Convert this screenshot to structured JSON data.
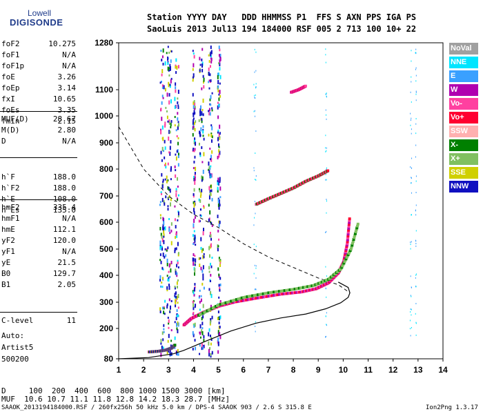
{
  "logo": {
    "top": "Lowell",
    "bottom": "DIGISONDE"
  },
  "header": {
    "line1": "Station YYYY DAY   DDD HHMMSS P1  FFS S AXN PPS IGA PS",
    "line2": "SaoLuis 2013 Jul13 194 184000 RSF 005 2 713 100 10+ 22"
  },
  "params": {
    "group1": [
      {
        "name": "foF2",
        "value": "10.275"
      },
      {
        "name": "foF1",
        "value": "N/A"
      },
      {
        "name": "foF1p",
        "value": "N/A"
      },
      {
        "name": "foE",
        "value": "3.26"
      },
      {
        "name": "foEp",
        "value": "3.14"
      },
      {
        "name": "fxI",
        "value": "10.65"
      },
      {
        "name": "foEs",
        "value": "3.35"
      },
      {
        "name": "fmin",
        "value": "2.15"
      }
    ],
    "group2": [
      {
        "name": "MUF(D)",
        "value": "28.67"
      },
      {
        "name": "M(D)",
        "value": "2.80"
      },
      {
        "name": "D",
        "value": "N/A"
      }
    ],
    "group3": [
      {
        "name": "h`F",
        "value": "188.0"
      },
      {
        "name": "h`F2",
        "value": "188.0"
      },
      {
        "name": "h`E",
        "value": "108.0"
      },
      {
        "name": "h`Es",
        "value": "135.0"
      }
    ],
    "group4": [
      {
        "name": "hmF2",
        "value": "335.4"
      },
      {
        "name": "hmF1",
        "value": "N/A"
      },
      {
        "name": "hmE",
        "value": "112.1"
      },
      {
        "name": "yF2",
        "value": "120.0"
      },
      {
        "name": "yF1",
        "value": "N/A"
      },
      {
        "name": "yE",
        "value": "21.5"
      },
      {
        "name": "B0",
        "value": "129.7"
      },
      {
        "name": "B1",
        "value": "2.05"
      }
    ],
    "group5": [
      {
        "name": "C-level",
        "value": "11"
      }
    ]
  },
  "auto": {
    "line1": "Auto:",
    "line2": "Artist5",
    "line3": "500200"
  },
  "legend": [
    {
      "label": "NoVal",
      "color": "#a0a0a0"
    },
    {
      "label": "NNE",
      "color": "#00e5ff"
    },
    {
      "label": "E",
      "color": "#3aa0ff"
    },
    {
      "label": "W",
      "color": "#b000b0"
    },
    {
      "label": "Vo-",
      "color": "#ff40a0"
    },
    {
      "label": "Vo+",
      "color": "#ff0030"
    },
    {
      "label": "SSW",
      "color": "#ffb0b0"
    },
    {
      "label": "X-",
      "color": "#008000"
    },
    {
      "label": "X+",
      "color": "#80c060"
    },
    {
      "label": "SSE",
      "color": "#d0d000"
    },
    {
      "label": "NNW",
      "color": "#1010c0"
    }
  ],
  "bottom": {
    "d_row": "D     100  200  400  600  800 1000 1500 3000 [km]",
    "muf_row": "MUF  10.6 10.7 11.1 11.8 12.8 14.2 18.3 28.7 [MHz]"
  },
  "footer": {
    "left": "SAAOK_2013194184000.RSF / 260fx256h 50 kHz 5.0 km / DPS-4 SAAOK 903 / 2.6 S 315.8 E",
    "right": "Ion2Png 1.3.17"
  },
  "chart_data": {
    "type": "scatter",
    "x_ticks": [
      "1",
      "2",
      "3",
      "4",
      "5",
      "6",
      "7",
      "8",
      "9",
      "10",
      "11",
      "12",
      "13",
      "14"
    ],
    "y_ticks": [
      "80",
      "200",
      "300",
      "400",
      "500",
      "600",
      "700",
      "800",
      "900",
      "1000",
      "1100",
      "1280"
    ],
    "xlim": [
      1,
      14
    ],
    "ylim": [
      80,
      1280
    ],
    "grid": true,
    "legend_position": "right",
    "traces": [
      {
        "name": "O-trace F2",
        "x": [
          3.6,
          3.9,
          4.4,
          5.0,
          5.6,
          6.5,
          7.5,
          8.3,
          8.9,
          9.4,
          9.8,
          10.0,
          10.15,
          10.25
        ],
        "y": [
          213,
          238,
          262,
          285,
          300,
          315,
          330,
          338,
          350,
          372,
          410,
          450,
          520,
          620
        ]
      },
      {
        "name": "X-trace F2",
        "x": [
          4.2,
          5.0,
          6.0,
          7.0,
          8.0,
          8.8,
          9.4,
          9.9,
          10.3,
          10.6
        ],
        "y": [
          250,
          290,
          318,
          335,
          348,
          362,
          385,
          425,
          500,
          600
        ]
      },
      {
        "name": "O-trace E",
        "x": [
          2.2,
          2.6,
          2.9,
          3.1,
          3.25
        ],
        "y": [
          107,
          110,
          115,
          122,
          135
        ]
      },
      {
        "name": "Multi-hop",
        "x": [
          6.5,
          7.0,
          7.5,
          8.0,
          8.5,
          9.0,
          9.4
        ],
        "y": [
          668,
          690,
          710,
          730,
          755,
          775,
          795
        ]
      },
      {
        "name": "Multi-hop upper",
        "x": [
          7.9,
          8.2,
          8.5
        ],
        "y": [
          1090,
          1100,
          1115
        ]
      }
    ],
    "profile_solid": {
      "x": [
        1.0,
        2.2,
        3.2,
        3.6,
        4.5,
        5.5,
        6.5,
        7.5,
        8.5,
        9.3,
        9.9,
        10.2,
        10.27,
        10.2,
        9.8
      ],
      "y": [
        80,
        85,
        100,
        113,
        150,
        190,
        220,
        240,
        255,
        275,
        298,
        318,
        335,
        355,
        375
      ]
    },
    "profile_dashed": {
      "x": [
        1.0,
        2.0,
        3.0,
        4.0,
        5.0,
        6.0,
        7.0,
        8.0,
        9.0,
        9.8,
        10.27
      ],
      "y": [
        960,
        800,
        700,
        630,
        580,
        520,
        470,
        430,
        390,
        365,
        335
      ]
    }
  }
}
